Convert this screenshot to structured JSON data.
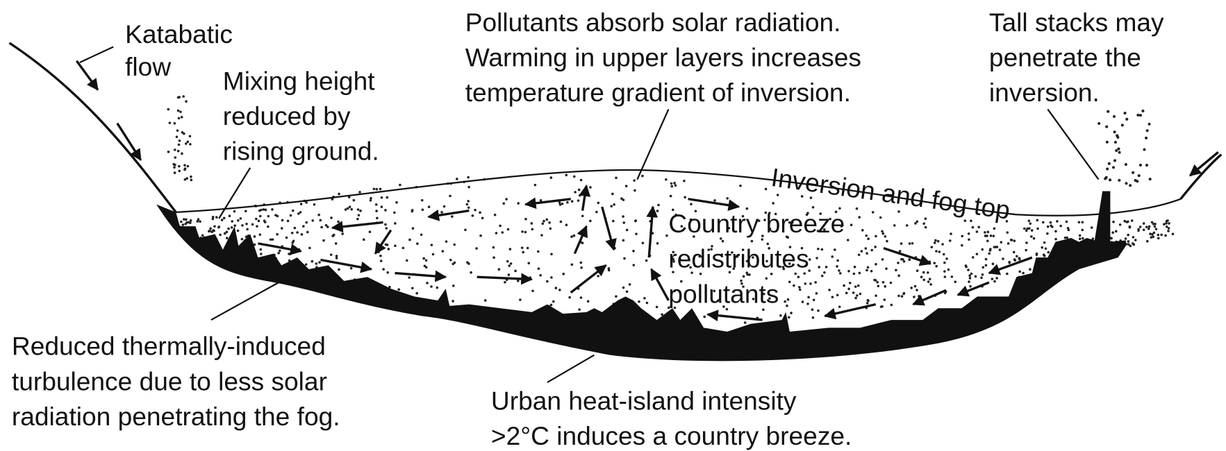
{
  "labels": [
    {
      "lines": [
        "Katabatic",
        "flow"
      ]
    },
    {
      "lines": [
        "Mixing height",
        "reduced by",
        "rising ground."
      ]
    },
    {
      "lines": [
        "Pollutants absorb solar radiation.",
        "Warming in upper layers increases",
        "temperature gradient of inversion."
      ]
    },
    {
      "lines": [
        "Tall stacks may",
        "penetrate the",
        "inversion."
      ]
    },
    {
      "lines": [
        "Inversion and fog top"
      ]
    },
    {
      "lines": [
        "Country breeze",
        "redistributes",
        "pollutants"
      ]
    },
    {
      "lines": [
        "Reduced thermally-induced",
        "turbulence due to less solar",
        "radiation penetrating the fog."
      ]
    },
    {
      "lines": [
        "Urban heat-island intensity",
        ">2°C induces a country breeze."
      ]
    }
  ]
}
